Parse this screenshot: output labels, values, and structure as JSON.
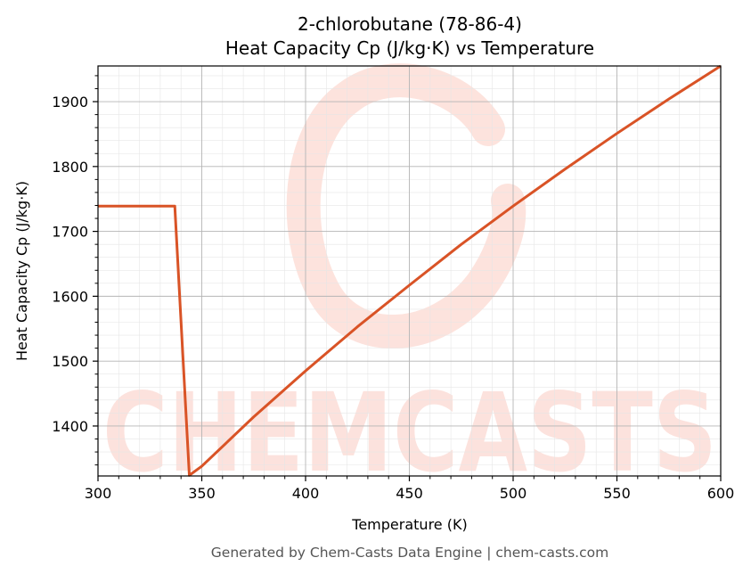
{
  "chart_data": {
    "type": "line",
    "title": "2-chlorobutane (78-86-4)",
    "subtitle": "Heat Capacity Cp (J/kg·K) vs Temperature",
    "xlabel": "Temperature (K)",
    "ylabel": "Heat Capacity Cp (J/kg·K)",
    "xlim": [
      300,
      600
    ],
    "ylim": [
      1323,
      1955
    ],
    "xticks": [
      300,
      350,
      400,
      450,
      500,
      550,
      600
    ],
    "yticks": [
      1400,
      1500,
      1600,
      1700,
      1800,
      1900
    ],
    "grid": true,
    "series": [
      {
        "color": "#d95326",
        "x": [
          300,
          337,
          344,
          350,
          375,
          400,
          425,
          450,
          475,
          500,
          525,
          550,
          575,
          600
        ],
        "y": [
          1739,
          1739,
          1324,
          1338,
          1414,
          1485,
          1553,
          1617,
          1680,
          1739,
          1796,
          1851,
          1904,
          1955
        ]
      }
    ]
  },
  "watermark": {
    "text": "CHEMCASTS",
    "color": "#fcd9d2"
  },
  "footer": "Generated by Chem-Casts Data Engine | chem-casts.com"
}
